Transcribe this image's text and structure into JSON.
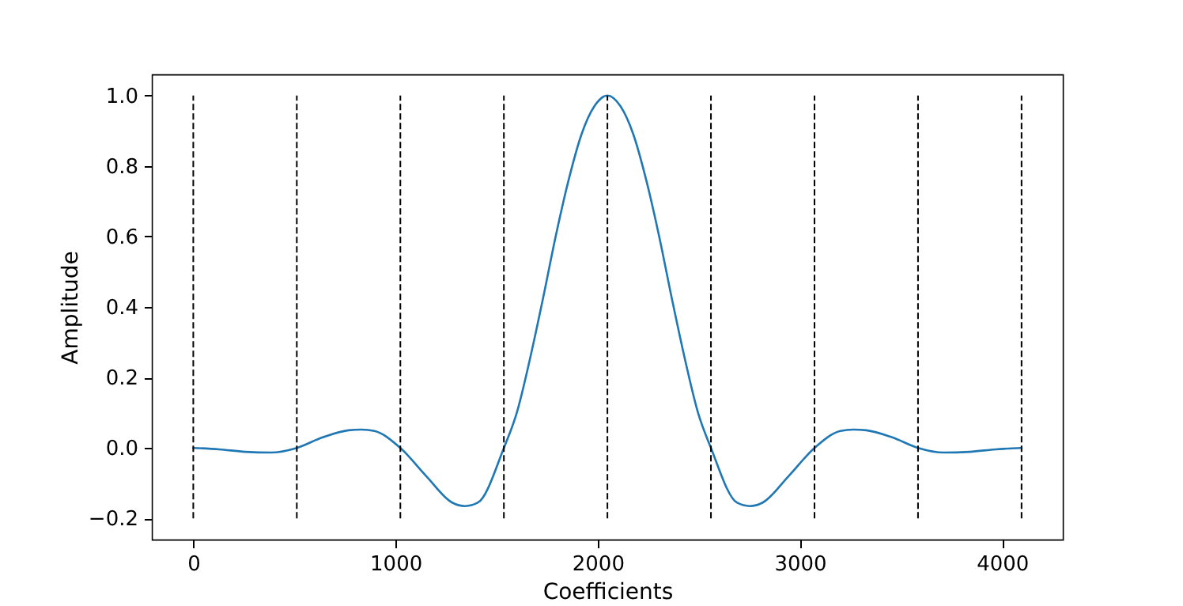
{
  "chart_data": {
    "type": "line",
    "xlabel": "Coefficients",
    "ylabel": "Amplitude",
    "series": [
      {
        "color": "#1f77b4",
        "x": [
          0,
          128,
          256,
          384,
          512,
          640,
          768,
          832,
          896,
          1024,
          1152,
          1280,
          1344,
          1408,
          1536,
          1600,
          1664,
          1728,
          1792,
          1856,
          1920,
          1984,
          2048,
          2112,
          2176,
          2240,
          2304,
          2368,
          2432,
          2496,
          2560,
          2688,
          2752,
          2816,
          2944,
          3072,
          3200,
          3264,
          3328,
          3456,
          3584,
          3712,
          3840,
          3968,
          4096
        ],
        "values": [
          0.0,
          -0.004,
          -0.011,
          -0.013,
          0.0,
          0.03,
          0.05,
          0.052,
          0.048,
          0.0,
          -0.08,
          -0.155,
          -0.165,
          -0.155,
          0.0,
          0.1,
          0.25,
          0.42,
          0.6,
          0.76,
          0.89,
          0.97,
          1.0,
          0.97,
          0.89,
          0.76,
          0.6,
          0.42,
          0.25,
          0.1,
          0.0,
          -0.155,
          -0.165,
          -0.155,
          -0.08,
          0.0,
          0.048,
          0.052,
          0.05,
          0.03,
          0.0,
          -0.013,
          -0.011,
          -0.004,
          0.0
        ]
      }
    ],
    "xlim": [
      -205,
      4300
    ],
    "xticks": [
      0,
      1000,
      2000,
      3000,
      4000
    ],
    "ylim": [
      -0.26,
      1.06
    ],
    "yticks": [
      {
        "value": -0.2,
        "label": "−0.2"
      },
      {
        "value": 0,
        "label": "0.0"
      },
      {
        "value": 0.2,
        "label": "0.2"
      },
      {
        "value": 0.4,
        "label": "0.4"
      },
      {
        "value": 0.6,
        "label": "0.6"
      },
      {
        "value": 0.8,
        "label": "0.8"
      },
      {
        "value": 1.0,
        "label": "1.0"
      }
    ],
    "ref_lines": [
      {
        "axis": "x",
        "value": 0,
        "color": "#000000",
        "line_style": "dashed"
      },
      {
        "axis": "x",
        "value": 512,
        "color": "#000000",
        "line_style": "dashed"
      },
      {
        "axis": "x",
        "value": 1024,
        "color": "#000000",
        "line_style": "dashed"
      },
      {
        "axis": "x",
        "value": 1536,
        "color": "#000000",
        "line_style": "dashed"
      },
      {
        "axis": "x",
        "value": 2048,
        "color": "#000000",
        "line_style": "dashed"
      },
      {
        "axis": "x",
        "value": 2560,
        "color": "#000000",
        "line_style": "dashed"
      },
      {
        "axis": "x",
        "value": 3072,
        "color": "#000000",
        "line_style": "dashed"
      },
      {
        "axis": "x",
        "value": 3584,
        "color": "#000000",
        "line_style": "dashed"
      },
      {
        "axis": "x",
        "value": 4096,
        "color": "#000000",
        "line_style": "dashed"
      }
    ],
    "grid": false,
    "legend": false,
    "marker": "none",
    "line_style": "solid"
  }
}
